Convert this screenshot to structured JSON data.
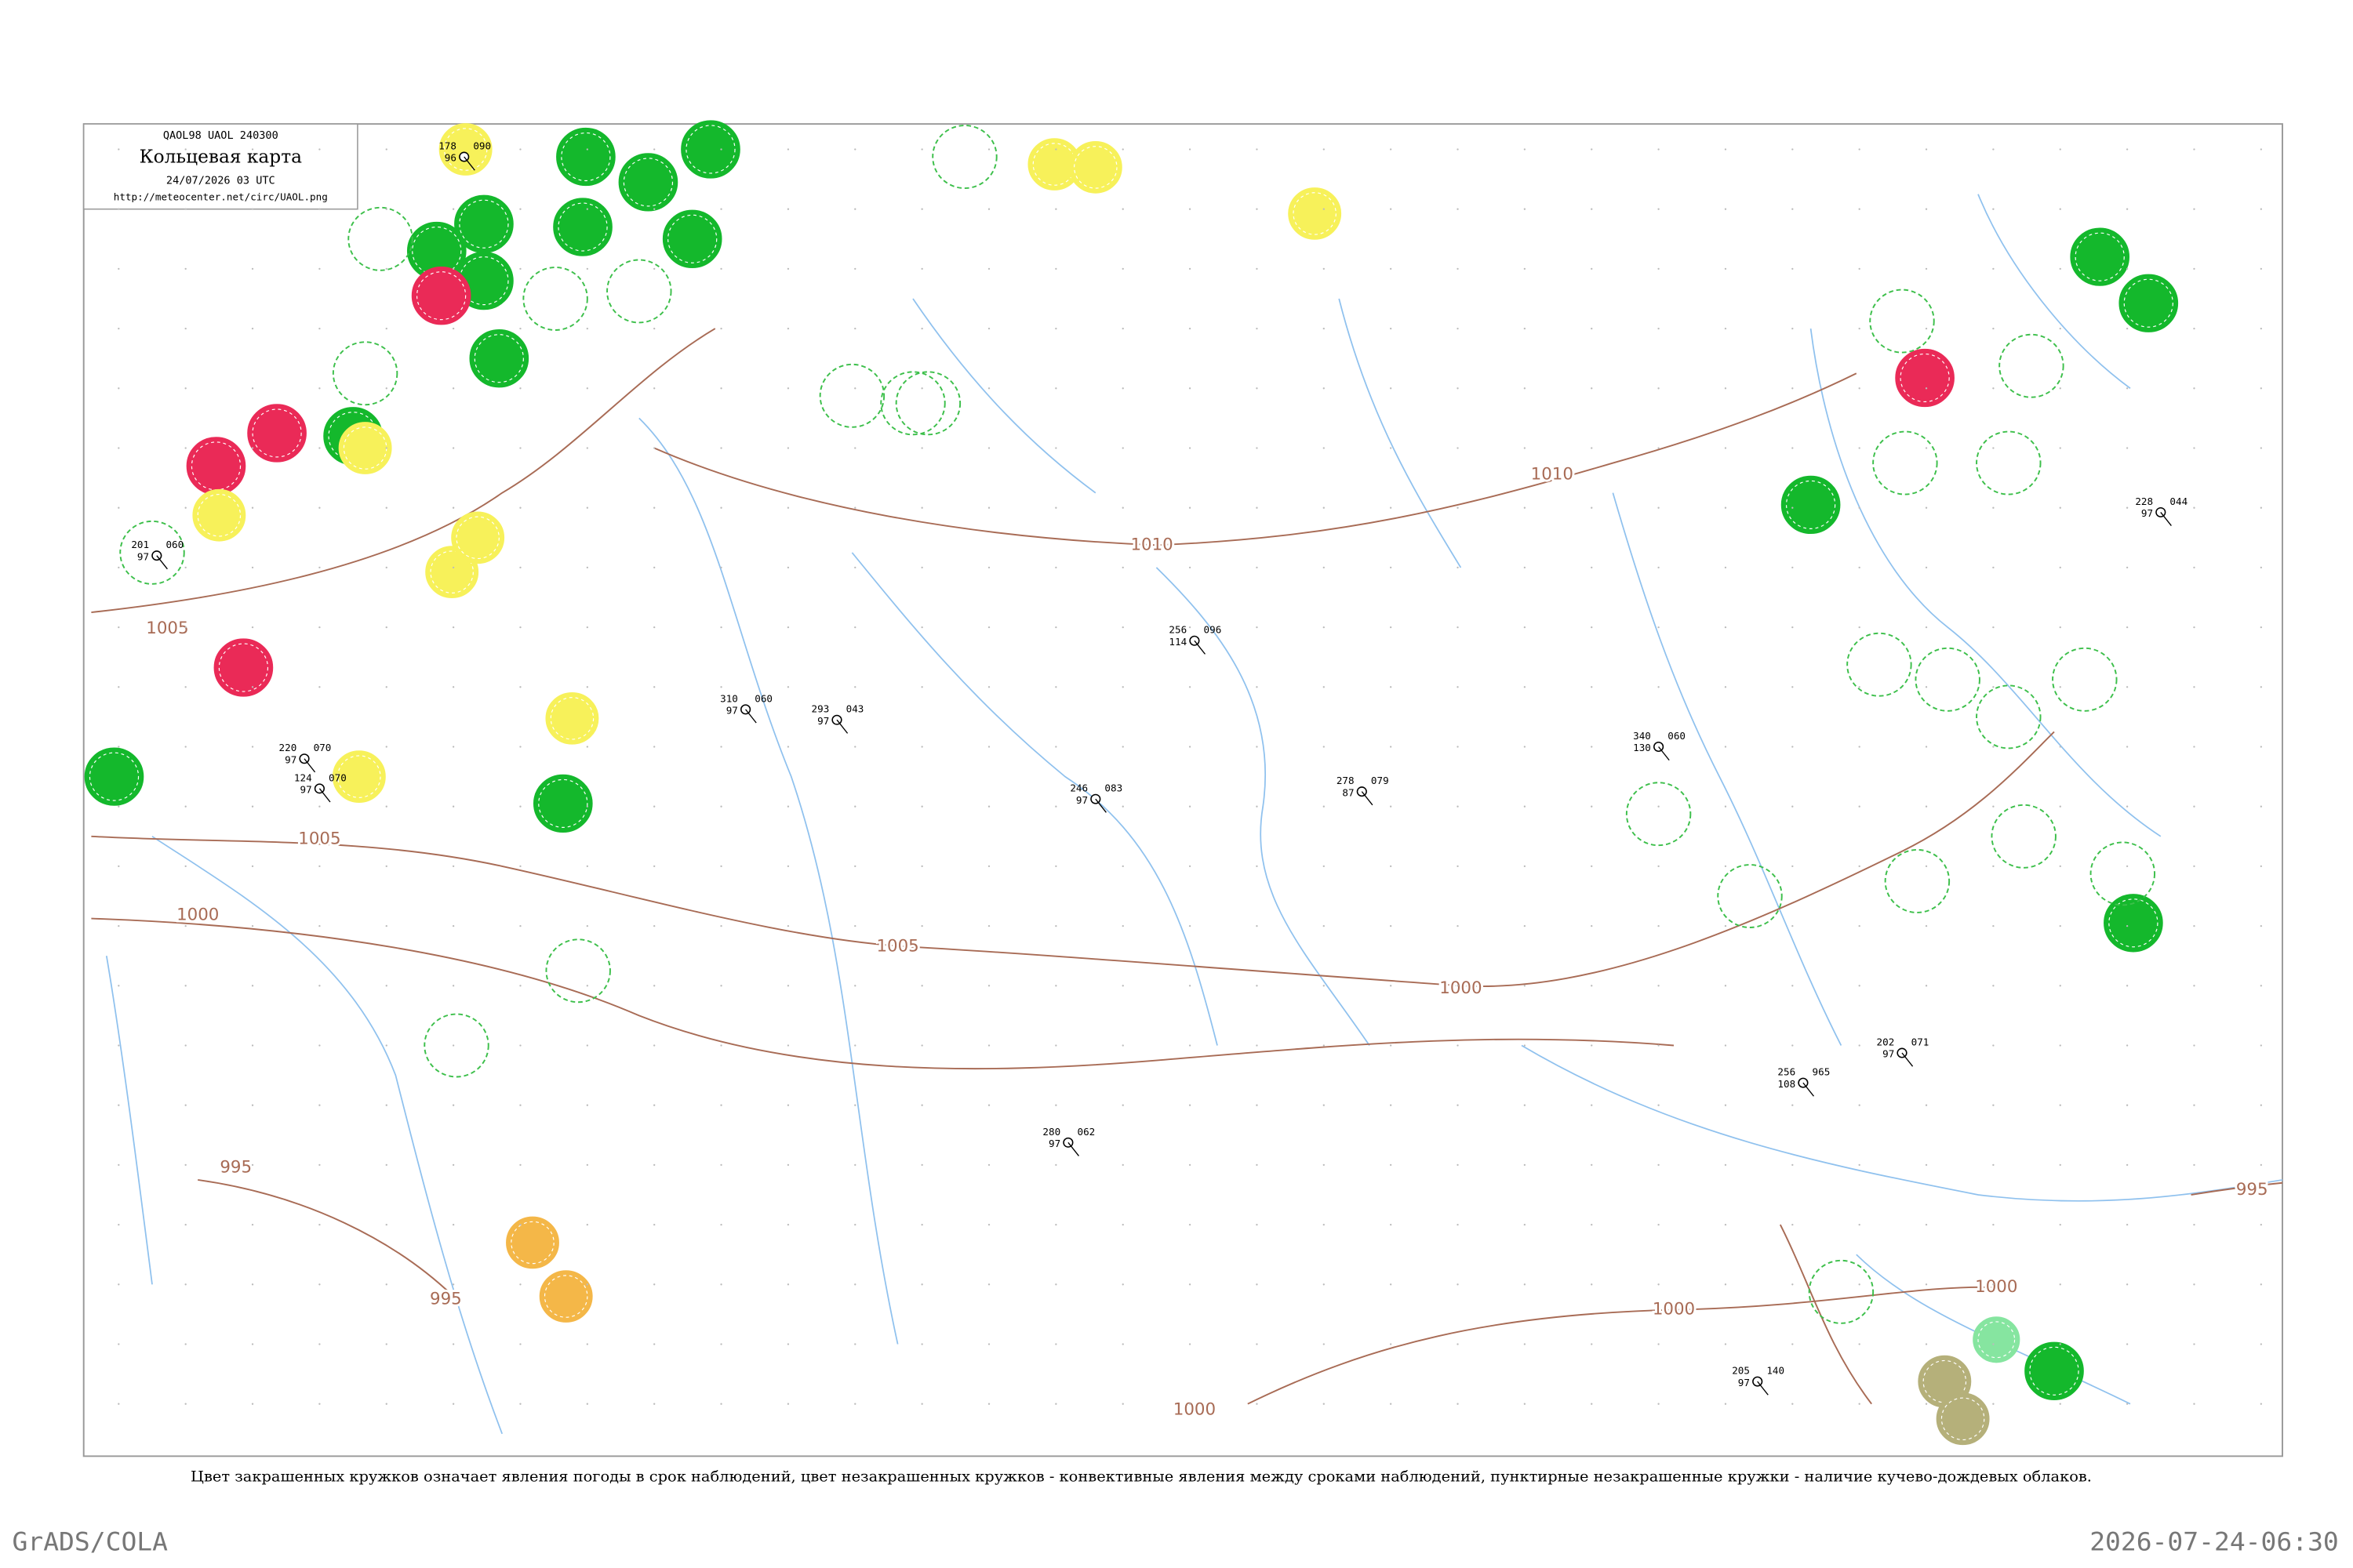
{
  "header": {
    "code": "QAOL98  UAOL  240300",
    "title": "Кольцевая карта",
    "time": "24/07/2026 03 UTC",
    "url": "http://meteocenter.net/circ/UAOL.png"
  },
  "isobars": [
    "1005",
    "1010",
    "1010",
    "1005",
    "1000",
    "1005",
    "1000",
    "995",
    "995",
    "1000",
    "1000",
    "1000",
    "995"
  ],
  "stations": [
    {
      "t": "178",
      "p": "090",
      "d": "96"
    },
    {
      "t": "220",
      "p": "070",
      "d": "97"
    },
    {
      "t": "124",
      "p": "070",
      "d": "97"
    },
    {
      "t": "201",
      "p": "060",
      "d": "97"
    },
    {
      "t": "256",
      "p": "096",
      "d": "114"
    },
    {
      "t": "310",
      "p": "060",
      "d": "97"
    },
    {
      "t": "293",
      "p": "043",
      "d": "97"
    },
    {
      "t": "246",
      "p": "083",
      "d": "97"
    },
    {
      "t": "278",
      "p": "079",
      "d": "87"
    },
    {
      "t": "340",
      "p": "060",
      "d": "130"
    },
    {
      "t": "202",
      "p": "071",
      "d": "97"
    },
    {
      "t": "256",
      "p": "965",
      "d": "108"
    },
    {
      "t": "228",
      "p": "044",
      "d": "97"
    },
    {
      "t": "205",
      "p": "140",
      "d": "97"
    },
    {
      "t": "280",
      "p": "062",
      "d": "97"
    }
  ],
  "caption": "Цвет закрашенных кружков означает явления погоды в срок наблюдений, цвет незакрашенных кружков - конвективные явления между сроками наблюдений, пунктирные незакрашенные кружки - наличие кучево-дождевых облаков.",
  "footer": {
    "left": "GrADS/COLA",
    "right": "2026-07-24-06:30"
  }
}
